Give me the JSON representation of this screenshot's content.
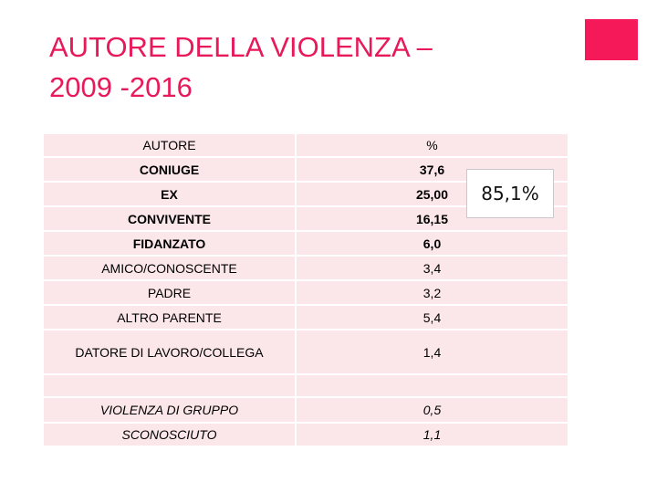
{
  "slide": {
    "title": "AUTORE DELLA VIOLENZA –\n2009 -2016",
    "callout": "85,1%",
    "accent_color": "#f5195a",
    "title_color": "#e8195a"
  },
  "table": {
    "headers": [
      "AUTORE",
      "%"
    ],
    "rows": [
      {
        "label": "CONIUGE",
        "value": "37,6"
      },
      {
        "label": "EX",
        "value": "25,00"
      },
      {
        "label": "CONVIVENTE",
        "value": "16,15"
      },
      {
        "label": "FIDANZATO",
        "value": "6,0"
      },
      {
        "label": "AMICO/CONOSCENTE",
        "value": "3,4"
      },
      {
        "label": "PADRE",
        "value": "3,2"
      },
      {
        "label": "ALTRO PARENTE",
        "value": "5,4"
      },
      {
        "label": "DATORE DI LAVORO/COLLEGA",
        "value": "1,4"
      },
      {
        "label": "",
        "value": ""
      },
      {
        "label": "VIOLENZA DI GRUPPO",
        "value": "0,5"
      },
      {
        "label": "SCONOSCIUTO",
        "value": "1,1"
      }
    ]
  }
}
